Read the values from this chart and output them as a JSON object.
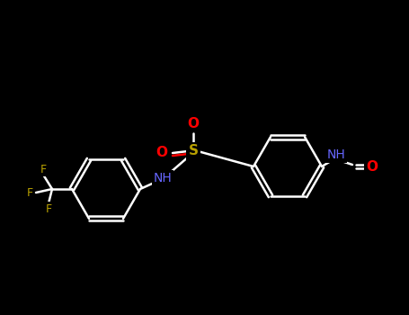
{
  "bg_color": "#000000",
  "bond_color": "#ffffff",
  "atom_colors": {
    "O": "#ff0000",
    "N": "#6666ff",
    "S": "#b8a000",
    "F": "#b8a000",
    "C": "#ffffff"
  },
  "figsize": [
    4.55,
    3.5
  ],
  "dpi": 100,
  "ring_r": 38,
  "lw": 1.8
}
